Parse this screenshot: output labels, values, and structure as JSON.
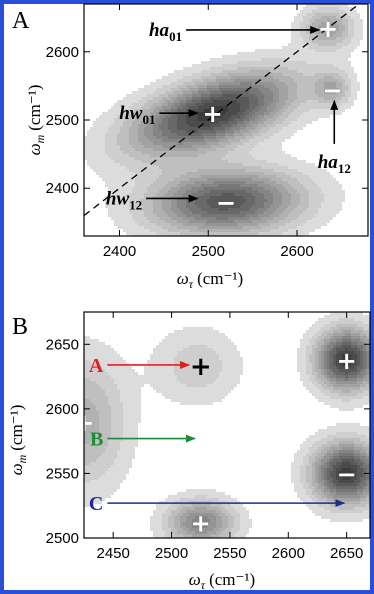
{
  "colors": {
    "frame": "#2a4fd6",
    "arrow_A": "#e02020",
    "arrow_B": "#1f8a3a",
    "arrow_C": "#1e2d8c"
  },
  "chart_data": [
    {
      "panel": "A",
      "type": "contour",
      "xlim": [
        2360,
        2680
      ],
      "ylim": [
        2330,
        2670
      ],
      "xticks": [
        "2400",
        "2500",
        "2600"
      ],
      "yticks": [
        "2400",
        "2500",
        "2600"
      ],
      "xlabel": {
        "symbol": "ω",
        "sub": "τ",
        "unit": "(cm⁻¹)"
      },
      "ylabel": {
        "symbol": "ω",
        "sub": "m",
        "unit": "(cm⁻¹)"
      },
      "diagonal": {
        "style": "dashed",
        "from": [
          2360,
          2360
        ],
        "to": [
          2670,
          2670
        ]
      },
      "peaks": [
        {
          "name": "hw01",
          "x": 2505,
          "y": 2510,
          "sign": "+",
          "amplitude": 1.0,
          "sx": 62,
          "sy": 40,
          "rho": 0.55
        },
        {
          "name": "hw12",
          "x": 2520,
          "y": 2380,
          "sign": "−",
          "amplitude": 0.85,
          "sx": 58,
          "sy": 32,
          "rho": 0.1
        },
        {
          "name": "ha01",
          "x": 2635,
          "y": 2635,
          "sign": "+",
          "amplitude": 0.45,
          "sx": 20,
          "sy": 20,
          "rho": 0.0
        },
        {
          "name": "ha12",
          "x": 2640,
          "y": 2545,
          "sign": "−",
          "amplitude": 0.35,
          "sx": 14,
          "sy": 18,
          "rho": 0.0
        }
      ],
      "annotations": [
        {
          "base": "ha",
          "sub": "01",
          "arrow_from": [
            2475,
            2632
          ],
          "arrow_to": [
            2625,
            2632
          ]
        },
        {
          "base": "hw",
          "sub": "01",
          "arrow_from": [
            2445,
            2510
          ],
          "arrow_to": [
            2488,
            2510
          ]
        },
        {
          "base": "hw",
          "sub": "12",
          "arrow_from": [
            2430,
            2385
          ],
          "arrow_to": [
            2488,
            2385
          ]
        },
        {
          "base": "ha",
          "sub": "12",
          "arrow_from": [
            2642,
            2465
          ],
          "arrow_to": [
            2642,
            2528
          ]
        }
      ]
    },
    {
      "panel": "B",
      "type": "contour",
      "xlim": [
        2425,
        2670
      ],
      "ylim": [
        2500,
        2675
      ],
      "xticks": [
        "2450",
        "2500",
        "2550",
        "2600",
        "2650"
      ],
      "yticks": [
        "2500",
        "2550",
        "2600",
        "2650"
      ],
      "xlabel": {
        "symbol": "ω",
        "sub": "τ",
        "unit": "(cm⁻¹)"
      },
      "ylabel": {
        "symbol": "ω",
        "sub": "m",
        "unit": "(cm⁻¹)"
      },
      "peaks": [
        {
          "name": "p1",
          "x": 2650,
          "y": 2638,
          "sign": "+",
          "amplitude": 1.0,
          "sx": 18,
          "sy": 16,
          "rho": 0.0
        },
        {
          "name": "p2",
          "x": 2650,
          "y": 2550,
          "sign": "−",
          "amplitude": 1.0,
          "sx": 20,
          "sy": 16,
          "rho": 0.0
        },
        {
          "name": "p3",
          "x": 2525,
          "y": 2512,
          "sign": "+",
          "amplitude": 0.6,
          "sx": 20,
          "sy": 12,
          "rho": 0.0
        },
        {
          "name": "p4",
          "x": 2522,
          "y": 2633,
          "sign": "+",
          "amplitude": 0.2,
          "sx": 25,
          "sy": 20,
          "rho": 0.0
        },
        {
          "name": "p5",
          "x": 2425,
          "y": 2590,
          "sign": "+",
          "amplitude": 0.35,
          "sx": 25,
          "sy": 35,
          "rho": 0.0
        }
      ],
      "markers": [
        {
          "x": 2525,
          "y": 2633,
          "sign": "+",
          "style": "plain"
        }
      ],
      "annotations": [
        {
          "label": "A",
          "color_key": "arrow_A",
          "arrow_from": [
            2445,
            2634
          ],
          "arrow_to": [
            2515,
            2634
          ]
        },
        {
          "label": "B",
          "color_key": "arrow_B",
          "arrow_from": [
            2445,
            2577
          ],
          "arrow_to": [
            2520,
            2577
          ]
        },
        {
          "label": "C",
          "color_key": "arrow_C",
          "arrow_from": [
            2445,
            2527
          ],
          "arrow_to": [
            2648,
            2527
          ]
        }
      ]
    }
  ]
}
